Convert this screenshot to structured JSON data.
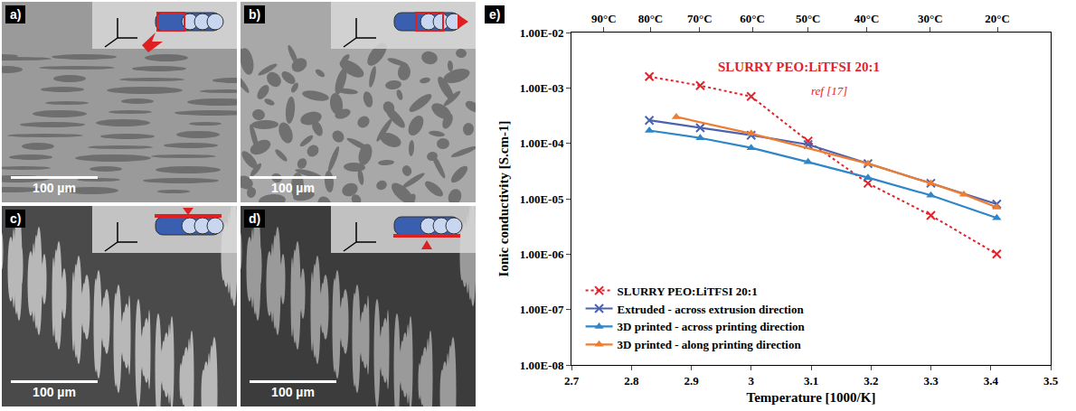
{
  "panels": [
    {
      "label": "a)",
      "scale_bar": "100 µm"
    },
    {
      "label": "b)",
      "scale_bar": "100 µm"
    },
    {
      "label": "c)",
      "scale_bar": "100 µm"
    },
    {
      "label": "d)",
      "scale_bar": "100 µm"
    }
  ],
  "chart_label": "e)",
  "chart_data": {
    "type": "scatter",
    "x_label": "Temperature [1000/K]",
    "y_label": "Ionic conductivity [S.cm-1]",
    "log": "y",
    "grid": false,
    "legend": "bottom left",
    "xlim": [
      2.7,
      3.5
    ],
    "xticks": [
      2.7,
      2.8,
      2.9,
      3,
      3.1,
      3.2,
      3.3,
      3.4,
      3.5
    ],
    "x2lim": [
      2.7,
      3.5
    ],
    "x2ticks": [
      {
        "value": 2.754,
        "label": "90°C"
      },
      {
        "value": 2.832,
        "label": "80°C"
      },
      {
        "value": 2.914,
        "label": "70°C"
      },
      {
        "value": 3.002,
        "label": "60°C"
      },
      {
        "value": 3.095,
        "label": "50°C"
      },
      {
        "value": 3.193,
        "label": "40°C"
      },
      {
        "value": 3.299,
        "label": "30°C"
      },
      {
        "value": 3.411,
        "label": "20°C"
      }
    ],
    "ylim": [
      1e-08,
      0.01
    ],
    "yticks": [
      {
        "value": 1e-08,
        "label": "1.00E-08"
      },
      {
        "value": 1e-07,
        "label": "1.00E-07"
      },
      {
        "value": 1e-06,
        "label": "1.00E-06"
      },
      {
        "value": 1e-05,
        "label": "1.00E-05"
      },
      {
        "value": 0.0001,
        "label": "1.00E-04"
      },
      {
        "value": 0.001,
        "label": "1.00E-03"
      },
      {
        "value": 0.01,
        "label": "1.00E-02"
      }
    ],
    "annotations": [
      "SLURRY PEO:LiTFSI 20:1",
      "ref [17]"
    ],
    "series": [
      {
        "name": "SLURRY PEO:LiTFSI 20:1",
        "color": "#e0242c",
        "marker": "x",
        "line_style": "dot",
        "x": [
          2.83,
          2.915,
          3.0,
          3.095,
          3.195,
          3.3,
          3.41
        ],
        "values": [
          0.0016,
          0.0011,
          0.0007,
          0.00011,
          1.9e-05,
          5e-06,
          1e-06
        ]
      },
      {
        "name": "Extruded - across extrusion direction",
        "color": "#4a62b0",
        "marker": "x",
        "line_style": "solid",
        "x": [
          2.83,
          2.915,
          3.0,
          3.095,
          3.195,
          3.3,
          3.41
        ],
        "values": [
          0.00026,
          0.00019,
          0.00014,
          9.5e-05,
          4.3e-05,
          1.9e-05,
          8e-06
        ]
      },
      {
        "name": "3D printed - across printing direction",
        "color": "#2e86c8",
        "marker": "triangle",
        "line_style": "solid",
        "x": [
          2.83,
          2.915,
          3.0,
          3.095,
          3.195,
          3.3,
          3.41
        ],
        "values": [
          0.00017,
          0.000125,
          8.3e-05,
          4.6e-05,
          2.4e-05,
          1.15e-05,
          4.5e-06
        ]
      },
      {
        "name": "3D printed - along printing direction",
        "color": "#ed7d31",
        "marker": "triangle",
        "line_style": "solid",
        "x": [
          2.875,
          3.0,
          3.195,
          3.3,
          3.355,
          3.41
        ],
        "values": [
          0.0003,
          0.00015,
          4.3e-05,
          1.9e-05,
          1.2e-05,
          7e-06
        ]
      }
    ]
  }
}
